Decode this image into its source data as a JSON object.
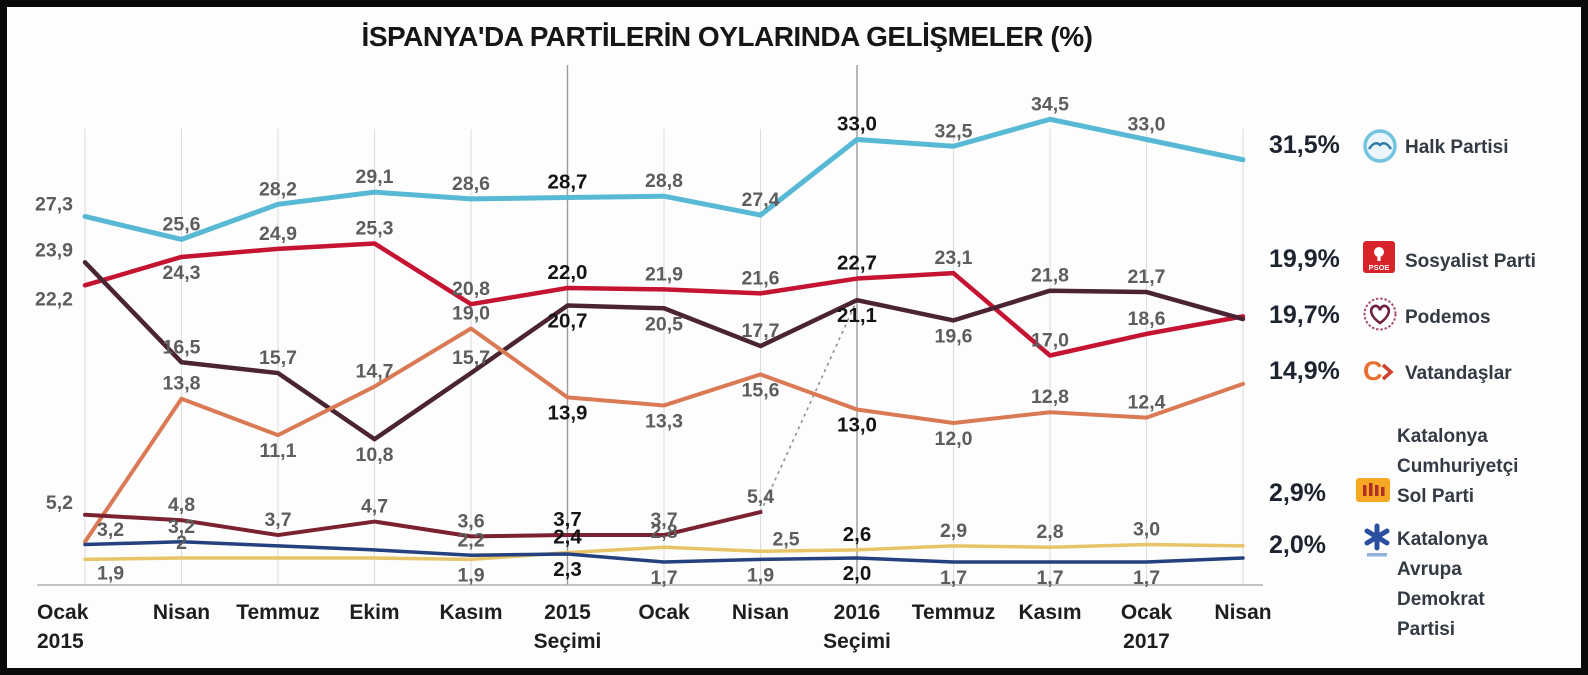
{
  "title": "İSPANYA'DA PARTİLERİN OYLARINDA GELİŞMELER (%)",
  "legend": {
    "rows": [
      {
        "pct": "31,5%",
        "name": "Halk Partisi"
      },
      {
        "pct": "19,9%",
        "name": "Sosyalist Parti"
      },
      {
        "pct": "19,7%",
        "name": "Podemos"
      },
      {
        "pct": "14,9%",
        "name": "Vatandaşlar"
      },
      {
        "pct": "2,9%",
        "name": "Katalonya Cumhuriyetçi Sol Parti",
        "lines": [
          "Katalonya",
          "Cumhuriyetçi",
          "Sol Parti"
        ]
      },
      {
        "pct": "2,0%",
        "name": "Katalonya Avrupa Demokrat Partisi",
        "lines": [
          "Katalonya",
          "Avrupa",
          "Demokrat",
          "Partisi"
        ]
      }
    ]
  },
  "chart_data": {
    "type": "line",
    "title": "İSPANYA'DA PARTİLERİN OYLARINDA GELİŞMELER (%)",
    "ylim": [
      0,
      36
    ],
    "grid": "vertical",
    "legend_position": "right",
    "x_categories": [
      "Ocak 2015",
      "Nisan",
      "Temmuz",
      "Ekim",
      "Kasım",
      "2015 Seçimi",
      "Ocak",
      "Nisan",
      "2016 Seçimi",
      "Temmuz",
      "Kasım",
      "Ocak 2017",
      "Nisan"
    ],
    "x_category_lines": [
      [
        "Ocak",
        "2015"
      ],
      [
        "Nisan"
      ],
      [
        "Temmuz"
      ],
      [
        "Ekim"
      ],
      [
        "Kasım"
      ],
      [
        "2015",
        "Seçimi"
      ],
      [
        "Ocak"
      ],
      [
        "Nisan"
      ],
      [
        "2016",
        "Seçimi"
      ],
      [
        "Temmuz"
      ],
      [
        "Kasım"
      ],
      [
        "Ocak",
        "2017"
      ],
      [
        "Nisan"
      ]
    ],
    "election_indices": [
      5,
      8
    ],
    "series": [
      {
        "id": "halk_partisi",
        "name": "Halk Partisi",
        "color": "#58b9d4",
        "width": 5,
        "final_pct": "31,5%",
        "values": [
          27.3,
          25.6,
          28.2,
          29.1,
          28.6,
          28.7,
          28.8,
          27.4,
          33.0,
          32.5,
          34.5,
          33.0,
          31.5
        ],
        "labels": [
          "27,3",
          "25,6",
          "28,2",
          "29,1",
          "28,6",
          "28,7",
          "28,8",
          "27,4",
          "33,0",
          "32,5",
          "34,5",
          "33,0",
          null
        ],
        "label_side": [
          "la",
          "a",
          "a",
          "a",
          "a",
          "a",
          "a",
          "a",
          "a",
          "a",
          "a",
          "a",
          null
        ]
      },
      {
        "id": "sosyalist_parti",
        "name": "Sosyalist Parti",
        "color": "#c41431",
        "width": 4.5,
        "final_pct": "19,9%",
        "values": [
          22.2,
          24.3,
          24.9,
          25.3,
          20.8,
          22.0,
          21.9,
          21.6,
          22.7,
          23.1,
          17.0,
          18.6,
          19.9
        ],
        "labels": [
          "22,2",
          "24,3",
          "24,9",
          "25,3",
          "20,8",
          "22,0",
          "21,9",
          "21,6",
          "22,7",
          "23,1",
          "17,0",
          "18,6",
          null
        ],
        "label_side": [
          "lb",
          "b",
          "a",
          "a",
          "a",
          "a",
          "a",
          "a",
          "a",
          "a",
          "a",
          "a",
          null
        ]
      },
      {
        "id": "podemos",
        "name": "Podemos",
        "color": "#4b2433",
        "width": 4.5,
        "final_pct": "19,7%",
        "values": [
          23.9,
          16.5,
          15.7,
          10.8,
          15.7,
          20.7,
          20.5,
          17.7,
          21.1,
          19.6,
          21.8,
          21.7,
          19.7
        ],
        "labels": [
          "23,9",
          "16,5",
          "15,7",
          "10,8",
          "15,7",
          "20,7",
          "20,5",
          "17,7",
          "21,1",
          "19,6",
          "21,8",
          "21,7",
          null
        ],
        "label_side": [
          "la",
          "a",
          "a",
          "b",
          "a",
          "b",
          "b",
          "a",
          "b",
          "b",
          "a",
          "a",
          null
        ]
      },
      {
        "id": "vatandaslar",
        "name": "Vatandaşlar",
        "color": "#d97a54",
        "width": 4,
        "final_pct": "14,9%",
        "values": [
          3.2,
          13.8,
          11.1,
          14.7,
          19.0,
          13.9,
          13.3,
          15.6,
          13.0,
          12.0,
          12.8,
          12.4,
          14.9
        ],
        "labels": [
          "3,2",
          "13,8",
          "11,1",
          "14,7",
          "19,0",
          "13,9",
          "13,3",
          "15,6",
          "13,0",
          "12,0",
          "12,8",
          "12,4",
          null
        ],
        "label_side": [
          "ra",
          "a",
          "b",
          "a",
          "a",
          "b",
          "b",
          "b",
          "b",
          "b",
          "a",
          "a",
          null
        ]
      },
      {
        "id": "birlesik_sol",
        "name": "",
        "color": "#7b2130",
        "width": 4,
        "values": [
          5.2,
          4.8,
          3.7,
          4.7,
          3.6,
          3.7,
          3.7,
          5.4,
          null,
          null,
          null,
          null,
          null
        ],
        "labels": [
          "5,2",
          "4,8",
          "3,7",
          "4,7",
          "3,6",
          "3,7",
          "3,7",
          "5,4",
          null,
          null,
          null,
          null,
          null
        ],
        "label_side": [
          "la",
          "a",
          "a",
          "a",
          "a",
          "a",
          "a",
          "a",
          null,
          null,
          null,
          null,
          null
        ]
      },
      {
        "id": "katalonya_cumhuriyetci_sol",
        "name": "Katalonya Cumhuriyetçi Sol Parti",
        "color": "#e7c468",
        "width": 3.5,
        "final_pct": "2,9%",
        "values": [
          1.9,
          2.0,
          2.0,
          2.0,
          1.9,
          2.4,
          2.8,
          2.5,
          2.6,
          2.9,
          2.8,
          3.0,
          2.9
        ],
        "labels": [
          "1,9",
          "2",
          null,
          null,
          "1,9",
          "2,4",
          "2,8",
          "2,5",
          "2,6",
          "2,9",
          "2,8",
          "3,0",
          null
        ],
        "label_side": [
          "rb",
          "a",
          null,
          null,
          "b",
          "a",
          "a",
          "ra",
          "a",
          "a",
          "a",
          "a",
          null
        ]
      },
      {
        "id": "katalonya_avrupa_demokrat",
        "name": "Katalonya Avrupa Demokrat Partisi",
        "color": "#24407e",
        "width": 3.5,
        "final_pct": "2,0%",
        "values": [
          3.0,
          3.2,
          2.9,
          2.6,
          2.2,
          2.3,
          1.7,
          1.9,
          2.0,
          1.7,
          1.7,
          1.7,
          2.0
        ],
        "labels": [
          null,
          "3,2",
          null,
          null,
          "2,2",
          "2,3",
          "1,7",
          "1,9",
          "2,0",
          "1,7",
          "1,7",
          "1,7",
          null
        ],
        "label_side": [
          null,
          "a",
          null,
          null,
          "a",
          "b",
          "b",
          "b",
          "b",
          "b",
          "b",
          "b",
          null
        ]
      }
    ],
    "merge_connector": {
      "from_series": "birlesik_sol",
      "from_index": 7,
      "to_series": "podemos",
      "to_index": 8,
      "style": "dashed"
    }
  }
}
